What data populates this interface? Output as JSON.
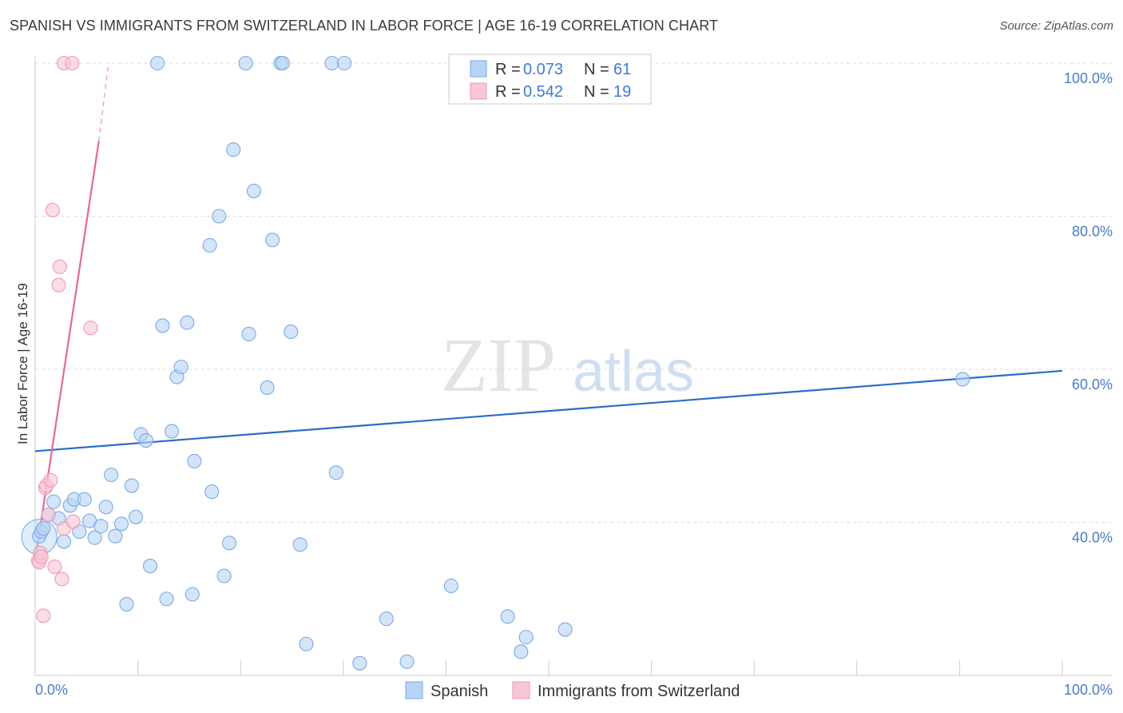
{
  "header": {
    "title": "SPANISH VS IMMIGRANTS FROM SWITZERLAND IN LABOR FORCE | AGE 16-19 CORRELATION CHART",
    "source": "Source: ZipAtlas.com"
  },
  "watermark": {
    "zip": "ZIP",
    "atlas": "atlas"
  },
  "colors": {
    "blue_fill": "#b8d4f5",
    "blue_stroke": "#7aaae6",
    "blue_line": "#2b6cc9",
    "pink_fill": "#f8c6d4",
    "pink_stroke": "#ee9ab3",
    "pink_line": "#e4689a",
    "grid": "#dddddd",
    "tick_text": "#4a7cc7"
  },
  "legend": {
    "rows": [
      {
        "r_label": "R =",
        "r_value": "0.073",
        "n_label": "N =",
        "n_value": "61",
        "series": "blue"
      },
      {
        "r_label": "R =",
        "r_value": "0.542",
        "n_label": "N =",
        "n_value": "19",
        "series": "pink"
      }
    ]
  },
  "bottom_legend": [
    {
      "label": "Spanish",
      "series": "blue"
    },
    {
      "label": "Immigrants from Switzerland",
      "series": "pink"
    }
  ],
  "chart_data": {
    "type": "scatter",
    "title": "SPANISH VS IMMIGRANTS FROM SWITZERLAND IN LABOR FORCE | AGE 16-19 CORRELATION CHART",
    "xlabel": "",
    "ylabel": "In Labor Force | Age 16-19",
    "xlim": [
      0,
      100
    ],
    "ylim": [
      20,
      100
    ],
    "x_tick_labels": [
      "0.0%",
      "100.0%"
    ],
    "y_ticks": [
      40,
      60,
      80,
      100
    ],
    "y_tick_labels": [
      "40.0%",
      "60.0%",
      "80.0%",
      "100.0%"
    ],
    "grid": true,
    "legend_position": "top-center",
    "series": [
      {
        "name": "Spanish",
        "color": "blue",
        "r": 0.073,
        "n": 61,
        "trend": {
          "x": [
            0,
            100
          ],
          "y": [
            49.3,
            59.8
          ]
        },
        "points": [
          [
            0.4,
            38.2
          ],
          [
            0.6,
            38.8
          ],
          [
            0.8,
            39.2
          ],
          [
            1.3,
            41.0
          ],
          [
            1.8,
            42.7
          ],
          [
            2.3,
            40.5
          ],
          [
            2.8,
            37.5
          ],
          [
            3.4,
            42.2
          ],
          [
            3.8,
            43.0
          ],
          [
            4.3,
            38.8
          ],
          [
            4.8,
            43.0
          ],
          [
            5.3,
            40.2
          ],
          [
            5.8,
            38.0
          ],
          [
            6.4,
            39.5
          ],
          [
            6.9,
            42.0
          ],
          [
            7.4,
            46.2
          ],
          [
            7.8,
            38.2
          ],
          [
            8.4,
            39.8
          ],
          [
            8.9,
            29.3
          ],
          [
            9.4,
            44.8
          ],
          [
            9.8,
            40.7
          ],
          [
            10.3,
            51.5
          ],
          [
            10.8,
            50.7
          ],
          [
            11.2,
            34.3
          ],
          [
            11.9,
            100.0
          ],
          [
            12.4,
            65.7
          ],
          [
            12.8,
            30.0
          ],
          [
            13.3,
            51.9
          ],
          [
            13.8,
            59.0
          ],
          [
            14.2,
            60.3
          ],
          [
            14.8,
            66.1
          ],
          [
            15.3,
            30.6
          ],
          [
            15.5,
            48.0
          ],
          [
            17.0,
            76.2
          ],
          [
            17.2,
            44.0
          ],
          [
            17.9,
            80.0
          ],
          [
            18.4,
            33.0
          ],
          [
            18.9,
            37.3
          ],
          [
            19.3,
            88.7
          ],
          [
            20.5,
            100.0
          ],
          [
            20.8,
            64.6
          ],
          [
            21.3,
            83.3
          ],
          [
            22.6,
            57.6
          ],
          [
            23.1,
            76.9
          ],
          [
            23.9,
            100.0
          ],
          [
            24.1,
            100.0
          ],
          [
            24.9,
            64.9
          ],
          [
            25.8,
            37.1
          ],
          [
            26.4,
            24.1
          ],
          [
            28.9,
            100.0
          ],
          [
            30.1,
            100.0
          ],
          [
            29.3,
            46.5
          ],
          [
            31.6,
            21.6
          ],
          [
            34.2,
            27.4
          ],
          [
            36.2,
            21.8
          ],
          [
            40.5,
            31.7
          ],
          [
            46.0,
            27.7
          ],
          [
            47.3,
            23.1
          ],
          [
            47.8,
            25.0
          ],
          [
            51.6,
            26.0
          ],
          [
            90.3,
            58.7
          ]
        ]
      },
      {
        "name": "Immigrants from Switzerland",
        "color": "pink",
        "r": 0.542,
        "n": 19,
        "trend": {
          "x": [
            0,
            6.2
          ],
          "y": [
            35.0,
            89.8
          ]
        },
        "trend_dashed": {
          "x": [
            6.2,
            7.1
          ],
          "y": [
            89.8,
            99.5
          ]
        },
        "points": [
          [
            0.3,
            35.0
          ],
          [
            0.4,
            34.8
          ],
          [
            0.5,
            36.0
          ],
          [
            0.6,
            35.5
          ],
          [
            0.8,
            27.8
          ],
          [
            1.0,
            44.5
          ],
          [
            1.1,
            44.8
          ],
          [
            1.3,
            41.0
          ],
          [
            1.5,
            45.5
          ],
          [
            1.7,
            80.8
          ],
          [
            1.9,
            34.2
          ],
          [
            2.3,
            71.0
          ],
          [
            2.4,
            73.4
          ],
          [
            2.6,
            32.6
          ],
          [
            2.8,
            39.2
          ],
          [
            2.8,
            100.0
          ],
          [
            3.6,
            100.0
          ],
          [
            3.7,
            40.1
          ],
          [
            5.4,
            65.4
          ]
        ]
      }
    ]
  }
}
